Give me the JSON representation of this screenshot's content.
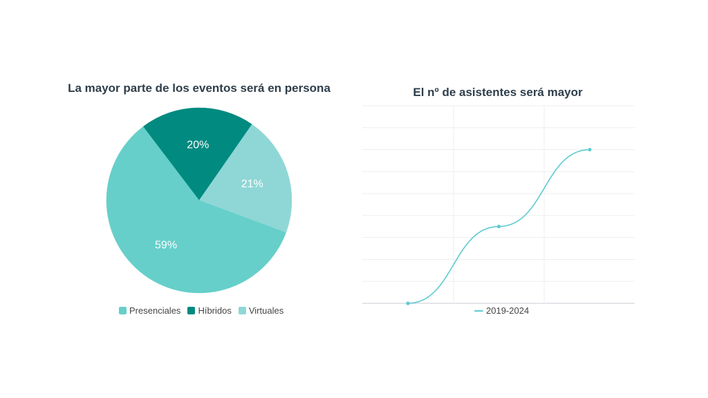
{
  "chart_data": [
    {
      "type": "pie",
      "title": "La mayor parte de los eventos será en persona",
      "slices": [
        {
          "label": "Presenciales",
          "value": 59,
          "display": "59%",
          "color": "#66cfca"
        },
        {
          "label": "Híbridos",
          "value": 20,
          "display": "20%",
          "color": "#008a80"
        },
        {
          "label": "Virtuales",
          "value": 21,
          "display": "21%",
          "color": "#8fd7d6"
        }
      ],
      "legend": "bottom"
    },
    {
      "type": "line",
      "title": "El nº de asistentes será mayor",
      "series": [
        {
          "name": "2019-2024",
          "values": [
            0,
            3.5,
            7
          ],
          "color": "#5ecbcf"
        }
      ],
      "x": [
        0,
        1,
        2
      ],
      "ylim": [
        0,
        9
      ],
      "grid": true,
      "legend": "bottom"
    }
  ]
}
